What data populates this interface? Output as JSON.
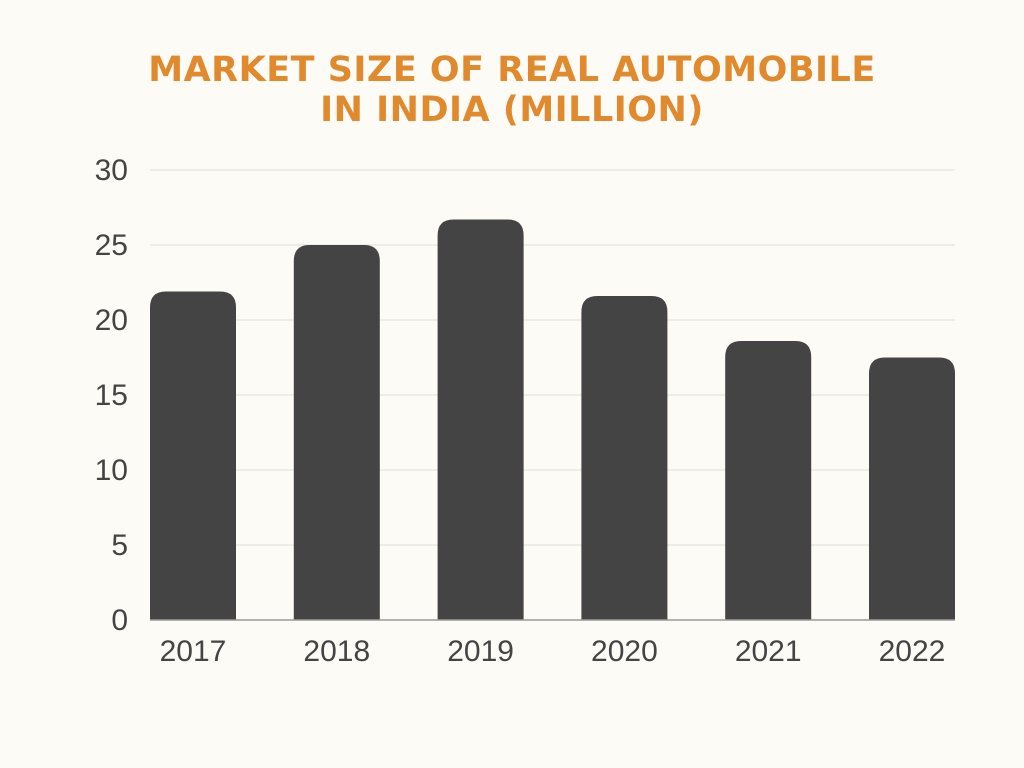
{
  "chart_data": {
    "type": "bar",
    "title_lines": [
      "MARKET SIZE OF REAL AUTOMOBILE",
      "IN INDIA (MILLION)"
    ],
    "categories": [
      "2017",
      "2018",
      "2019",
      "2020",
      "2021",
      "2022"
    ],
    "values": [
      21.9,
      25.0,
      26.7,
      21.6,
      18.6,
      17.5
    ],
    "ylim": [
      0,
      30
    ],
    "yticks": [
      "0",
      "5",
      "10",
      "15",
      "20",
      "25",
      "30"
    ],
    "grid": true,
    "legend": "none",
    "colors": {
      "bar": "#444444",
      "title": "#e08a2d",
      "grid": "#dcdcdc",
      "axis": "#999999",
      "text": "#444444",
      "background": "#fdfbf6"
    }
  }
}
